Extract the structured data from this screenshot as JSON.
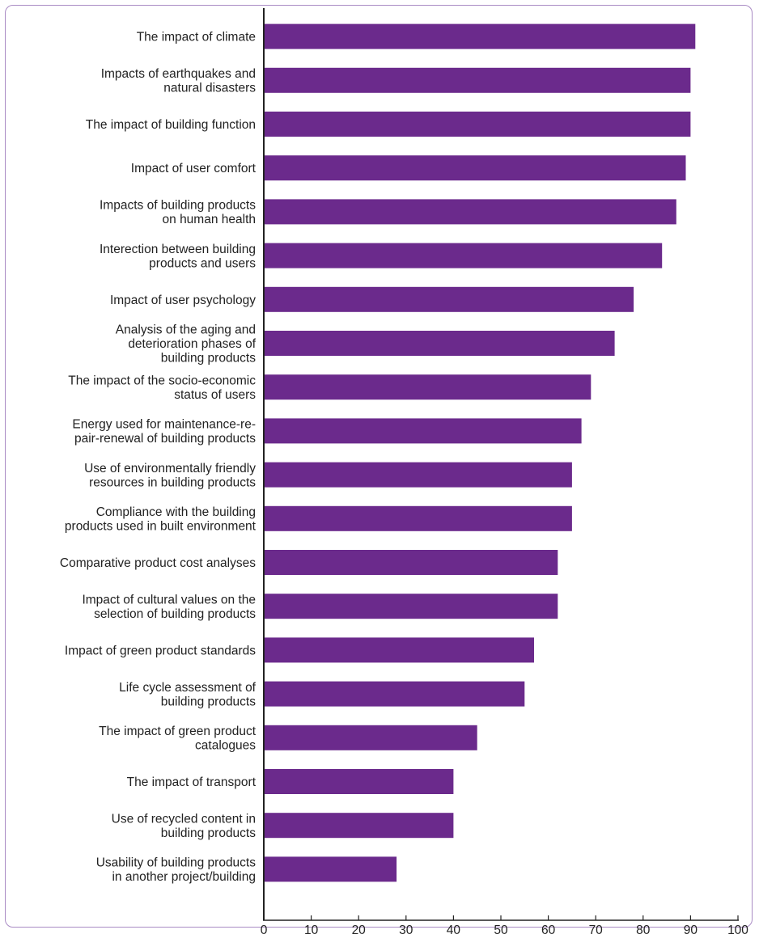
{
  "chart_data": {
    "type": "bar",
    "orientation": "horizontal",
    "title": "",
    "xlabel": "",
    "ylabel": "",
    "xlim": [
      0,
      100
    ],
    "x_ticks": [
      "0",
      "10",
      "20",
      "30",
      "40",
      "50",
      "60",
      "70",
      "80",
      "90",
      "100"
    ],
    "grid": false,
    "bar_color": "#6b2a8c",
    "categories": [
      [
        "The impact of climate"
      ],
      [
        "Impacts of earthquakes and",
        "natural disasters"
      ],
      [
        "The impact of building function"
      ],
      [
        "Impact of user comfort"
      ],
      [
        "Impacts of building products",
        "on human health"
      ],
      [
        "Interection between building",
        "products and users"
      ],
      [
        "Impact of user psychology"
      ],
      [
        "Analysis of the aging and",
        "deterioration phases of",
        "building products"
      ],
      [
        "The impact of the socio-economic",
        "status of users"
      ],
      [
        "Energy used for maintenance-re-",
        "pair-renewal of building products"
      ],
      [
        "Use of environmentally friendly",
        "resources in building products"
      ],
      [
        "Compliance with the building",
        "products used in built environment"
      ],
      [
        "Comparative product cost analyses"
      ],
      [
        "Impact of cultural values on the",
        "selection of building products"
      ],
      [
        "Impact of green product standards"
      ],
      [
        "Life cycle assessment of",
        "building products"
      ],
      [
        "The impact of green product",
        "catalogues"
      ],
      [
        "The impact of transport"
      ],
      [
        "Use of recycled content in",
        "building products"
      ],
      [
        "Usability of building products",
        "in another project/building"
      ]
    ],
    "values": [
      91,
      90,
      90,
      89,
      87,
      84,
      78,
      74,
      69,
      67,
      65,
      65,
      62,
      62,
      57,
      55,
      45,
      40,
      40,
      28
    ]
  }
}
